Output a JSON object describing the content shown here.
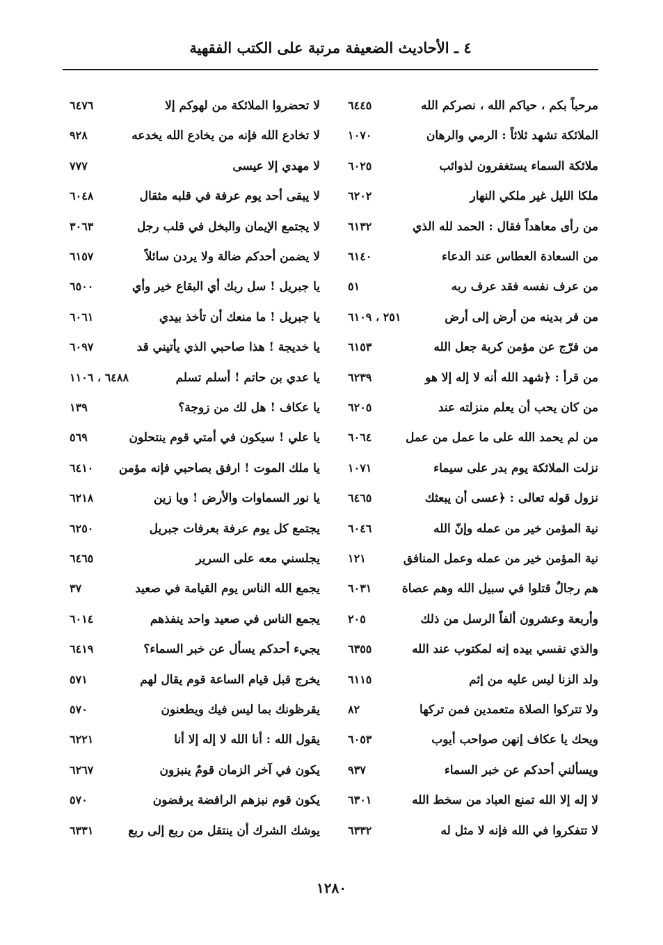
{
  "header": {
    "title": "٤ ـ الأحاديث الضعيفة مرتبة على الكتب الفقهية"
  },
  "right_column": [
    {
      "text": "مرحباً بكم ، حياكم الله ، نصركم الله",
      "num": "٦٤٤٥"
    },
    {
      "text": "الملائكة تشهد ثلاثاً : الرمي والرهان",
      "num": "١٠٧٠"
    },
    {
      "text": "ملائكة السماء يستغفرون لذوائب",
      "num": "٦٠٢٥"
    },
    {
      "text": "ملكا الليل غير ملكي النهار",
      "num": "٦٢٠٢"
    },
    {
      "text": "من رأى معاهداً فقال : الحمد لله الذي",
      "num": "٦١٣٢"
    },
    {
      "text": "من السعادة العطاس عند الدعاء",
      "num": "٦١٤٠"
    },
    {
      "text": "من عرف نفسه فقد عرف ربه",
      "num": "٥١"
    },
    {
      "text": "من فر بدينه من أرض إلى أرض",
      "num": "٢٥١ ، ٦١٠٩"
    },
    {
      "text": "من فرّج عن مؤمن كربة جعل الله",
      "num": "٦١٥٣"
    },
    {
      "text": "من قرأ : ﴿شهد الله أنه لا إله إلا هو",
      "num": "٦٢٣٩"
    },
    {
      "text": "من كان يحب أن يعلم منزلته عند",
      "num": "٦٢٠٥"
    },
    {
      "text": "من لم يحمد الله على ما عمل من عمل",
      "num": "٦٠٦٤"
    },
    {
      "text": "نزلت الملائكة يوم بدر على سيماء",
      "num": "١٠٧١"
    },
    {
      "text": "نزول قوله تعالى : ﴿عسى أن يبعثك",
      "num": "٦٤٦٥"
    },
    {
      "text": "نية المؤمن خير من عمله وإنّ الله",
      "num": "٦٠٤٦"
    },
    {
      "text": "نية المؤمن خير من عمله وعمل المنافق",
      "num": "١٢١"
    },
    {
      "text": "هم رجالٌ قتلوا في سبيل الله وهم عصاة",
      "num": "٦٠٣١"
    },
    {
      "text": "وأربعة وعشرون ألفاً الرسل من ذلك",
      "num": "٢٠٥"
    },
    {
      "text": "والذي نفسي بيده إنه لمكتوب عند الله",
      "num": "٦٣٥٥"
    },
    {
      "text": "ولد الزنا ليس عليه من إثم",
      "num": "٦١١٥"
    },
    {
      "text": "ولا تتركوا الصلاة متعمدين فمن تركها",
      "num": "٨٢"
    },
    {
      "text": "ويحك يا عكاف إنهن صواحب أيوب",
      "num": "٦٠٥٣"
    },
    {
      "text": "ويسألني أحدكم عن خبر السماء",
      "num": "٩٣٧"
    },
    {
      "text": "لا إله إلا الله تمنع العباد من سخط الله",
      "num": "٦٣٠١"
    },
    {
      "text": "لا تتفكروا في الله فإنه لا مثل له",
      "num": "٦٣٣٢"
    }
  ],
  "left_column": [
    {
      "text": "لا تحضروا الملائكة من لهوكم إلا",
      "num": "٦٤٧٦"
    },
    {
      "text": "لا تخادع الله فإنه من يخادع الله يخدعه",
      "num": "٩٢٨"
    },
    {
      "text": "لا مهدي إلا عيسى",
      "num": "٧٧٧"
    },
    {
      "text": "لا يبقى أحد يوم عرفة في قلبه مثقال",
      "num": "٦٠٤٨"
    },
    {
      "text": "لا يجتمع الإيمان والبخل في قلب رجل",
      "num": "٣٠٦٣"
    },
    {
      "text": "لا يضمن أحدكم ضالة ولا يردن سائلاً",
      "num": "٦١٥٧"
    },
    {
      "text": "يا جبريل ! سل ربك أي البقاع خير وأي",
      "num": "٦٥٠٠"
    },
    {
      "text": "يا جبريل ! ما منعك أن تأخذ بيدي",
      "num": "٦٠٦١"
    },
    {
      "text": "يا خديجة ! هذا صاحبي الذي يأتيني قد",
      "num": "٦٠٩٧"
    },
    {
      "text": "يا عدي بن حاتم ! أسلم تسلم",
      "num": "٦٤٨٨ ، ١١٠٦"
    },
    {
      "text": "يا عكاف ! هل لك من زوجة؟",
      "num": "١٣٩"
    },
    {
      "text": "يا علي ! سيكون في أمتي قوم ينتحلون",
      "num": "٥٦٩"
    },
    {
      "text": "يا ملك الموت ! ارفق بصاحبي فإنه مؤمن",
      "num": "٦٤١٠"
    },
    {
      "text": "يا نور السماوات والأرض ! ويا زين",
      "num": "٦٢١٨"
    },
    {
      "text": "يجتمع كل يوم عرفة بعرفات جبريل",
      "num": "٦٢٥٠"
    },
    {
      "text": "يجلسني معه على السرير",
      "num": "٦٤٦٥"
    },
    {
      "text": "يجمع الله الناس يوم القيامة في صعيد",
      "num": "٣٧"
    },
    {
      "text": "يجمع الناس في صعيد واحد ينفذهم",
      "num": "٦٠١٤"
    },
    {
      "text": "يجيء أحدكم يسأل عن خبر السماء؟",
      "num": "٦٤١٩"
    },
    {
      "text": "يخرج قبل قيام الساعة قوم يقال لهم",
      "num": "٥٧١"
    },
    {
      "text": "يقرظونك بما ليس فيك ويطعنون",
      "num": "٥٧٠"
    },
    {
      "text": "يقول الله : أنا الله لا إله إلا أنا",
      "num": "٦٢٢١"
    },
    {
      "text": "يكون في آخر الزمان قومٌ ينبزون",
      "num": "٦٢٦٧"
    },
    {
      "text": "يكون قوم نبزهم الرافضة يرفضون",
      "num": "٥٧٠"
    },
    {
      "text": "يوشك الشرك أن ينتقل من ربع إلى ربع",
      "num": "٦٣٣١"
    }
  ],
  "footer": {
    "page_number": "١٢٨٠"
  }
}
